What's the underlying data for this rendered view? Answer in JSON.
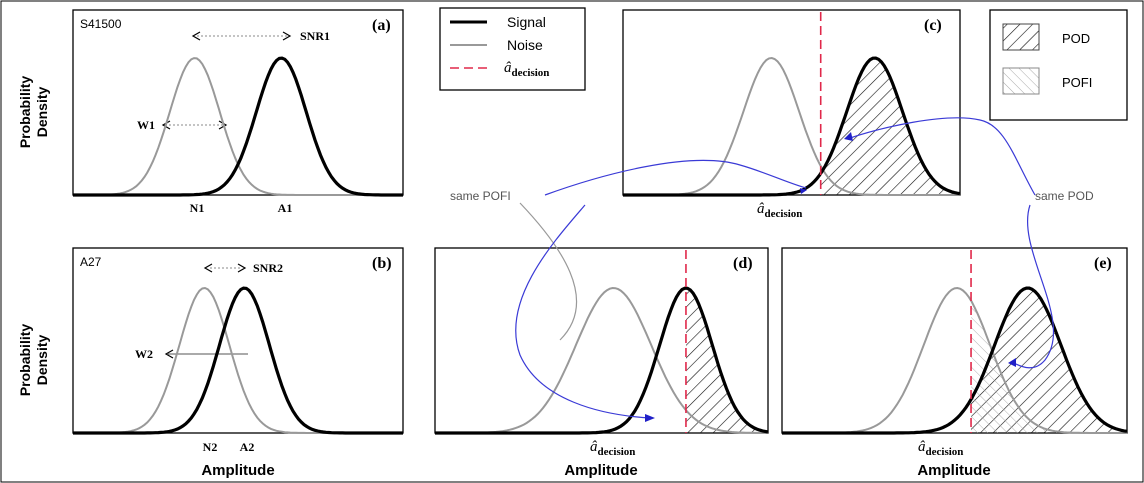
{
  "chart_data": [
    {
      "type": "line",
      "panel": "(a)",
      "id": "a",
      "sample": "S41500",
      "ylabel": "Probability Density",
      "xlabel": "",
      "series": [
        {
          "name": "Noise",
          "center_label": "N1",
          "center": 0.0,
          "width": 1.0
        },
        {
          "name": "Signal",
          "center_label": "A1",
          "center": 2.7,
          "width": 1.0
        }
      ],
      "annotations": {
        "snr": "SNR1",
        "width": "W1"
      }
    },
    {
      "type": "line",
      "panel": "(b)",
      "id": "b",
      "sample": "A27",
      "ylabel": "Probability Density",
      "xlabel": "Amplitude",
      "series": [
        {
          "name": "Noise",
          "center_label": "N2",
          "center": 0.0,
          "width": 1.0
        },
        {
          "name": "Signal",
          "center_label": "A2",
          "center": 1.25,
          "width": 1.0
        }
      ],
      "annotations": {
        "snr": "SNR2",
        "width": "W2"
      }
    },
    {
      "type": "line",
      "panel": "(c)",
      "id": "c",
      "xlabel": "â_decision",
      "series": [
        {
          "name": "Noise",
          "center": 0.0,
          "width": 0.8
        },
        {
          "name": "Signal",
          "center": 2.3,
          "width": 0.8
        }
      ],
      "decision": 1.1,
      "shaded": [
        "POD"
      ]
    },
    {
      "type": "line",
      "panel": "(d)",
      "id": "d",
      "xlabel": "Amplitude",
      "series": [
        {
          "name": "Noise",
          "center": 0.0,
          "width": 1.0
        },
        {
          "name": "Signal",
          "center": 1.5,
          "width": 0.7
        }
      ],
      "decision": 1.5,
      "shaded": [
        "POD"
      ]
    },
    {
      "type": "line",
      "panel": "(e)",
      "id": "e",
      "xlabel": "Amplitude",
      "series": [
        {
          "name": "Noise",
          "center": 0.0,
          "width": 0.9
        },
        {
          "name": "Signal",
          "center": 1.5,
          "width": 0.9
        }
      ],
      "decision": 0.3,
      "shaded": [
        "POD",
        "POFI"
      ]
    }
  ],
  "legend_lines": {
    "signal": "Signal",
    "noise": "Noise",
    "decision": "â"
  },
  "legend_lines_decision_sub": "decision",
  "legend_hatch": {
    "pod": "POD",
    "pofi": "POFI"
  },
  "labels": {
    "y_top": [
      "Probability",
      "Density"
    ],
    "y_bottom": [
      "Probability",
      "Density"
    ],
    "same_pofi": "same POFI",
    "same_pod": "same POD",
    "a_hat": "â",
    "decision_sub": "decision",
    "amplitude": "Amplitude"
  },
  "colors": {
    "signal": "#000000",
    "noise": "#999999",
    "decision": "#e0284a",
    "connector": "#3a3ad6"
  }
}
